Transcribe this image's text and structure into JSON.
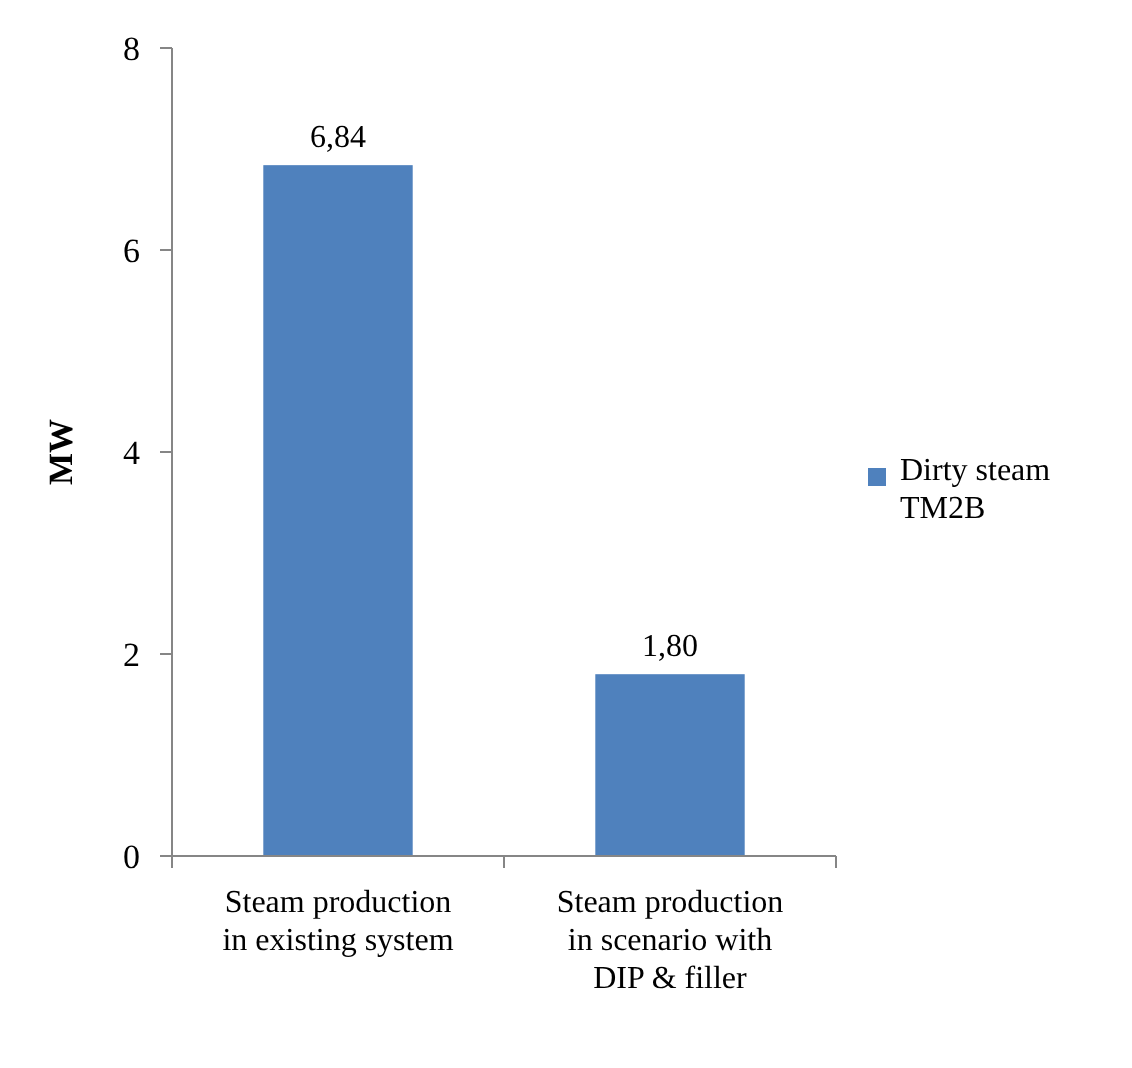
{
  "chart_data": {
    "type": "bar",
    "ylabel": "MW",
    "categories": [
      "Steam production in existing system",
      "Steam production in scenario with DIP & filler"
    ],
    "series": [
      {
        "name": "Dirty steam TM2B",
        "color": "#4f81bd",
        "values": [
          6.84,
          1.8
        ],
        "value_labels": [
          "6,84",
          "1,80"
        ]
      }
    ],
    "ylim": [
      0,
      8
    ],
    "yticks": [
      0,
      2,
      4,
      6,
      8
    ],
    "grid": false,
    "legend": "right"
  }
}
